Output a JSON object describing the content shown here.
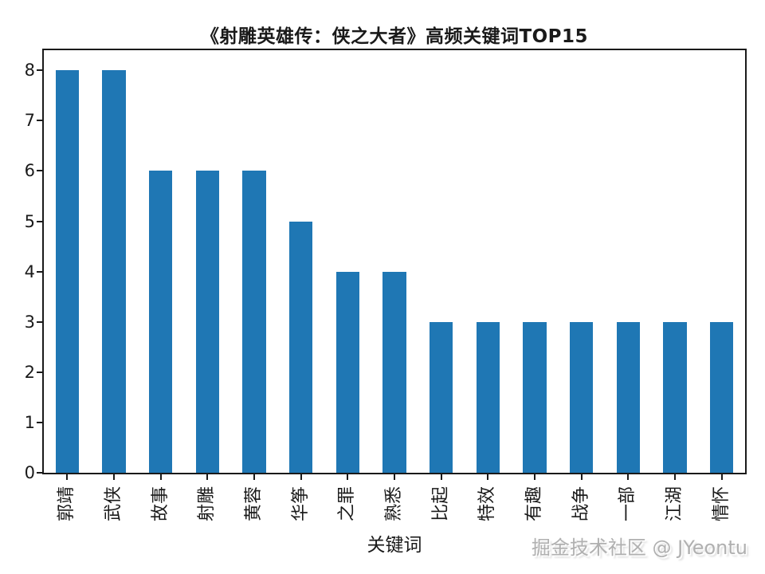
{
  "title": "《射雕英雄传：侠之大者》高频关键词TOP15",
  "watermark": "掘金技术社区 @ JYeontu",
  "chart_data": {
    "type": "bar",
    "title": "《射雕英雄传：侠之大者》高频关键词TOP15",
    "xlabel": "关键词",
    "ylabel": "",
    "categories": [
      "郭靖",
      "武侠",
      "故事",
      "射雕",
      "黄蓉",
      "华筝",
      "之罪",
      "熟悉",
      "比起",
      "特效",
      "有趣",
      "战争",
      "一部",
      "江湖",
      "情怀"
    ],
    "values": [
      8,
      8,
      6,
      6,
      6,
      5,
      4,
      4,
      3,
      3,
      3,
      3,
      3,
      3,
      3
    ],
    "yticks": [
      0,
      1,
      2,
      3,
      4,
      5,
      6,
      7,
      8
    ],
    "ylim": [
      0,
      8.4
    ],
    "bar_color": "#1f77b4",
    "bar_width_ratio": 0.5,
    "tick_label_rotation": 90,
    "grid": false,
    "legend": null
  }
}
